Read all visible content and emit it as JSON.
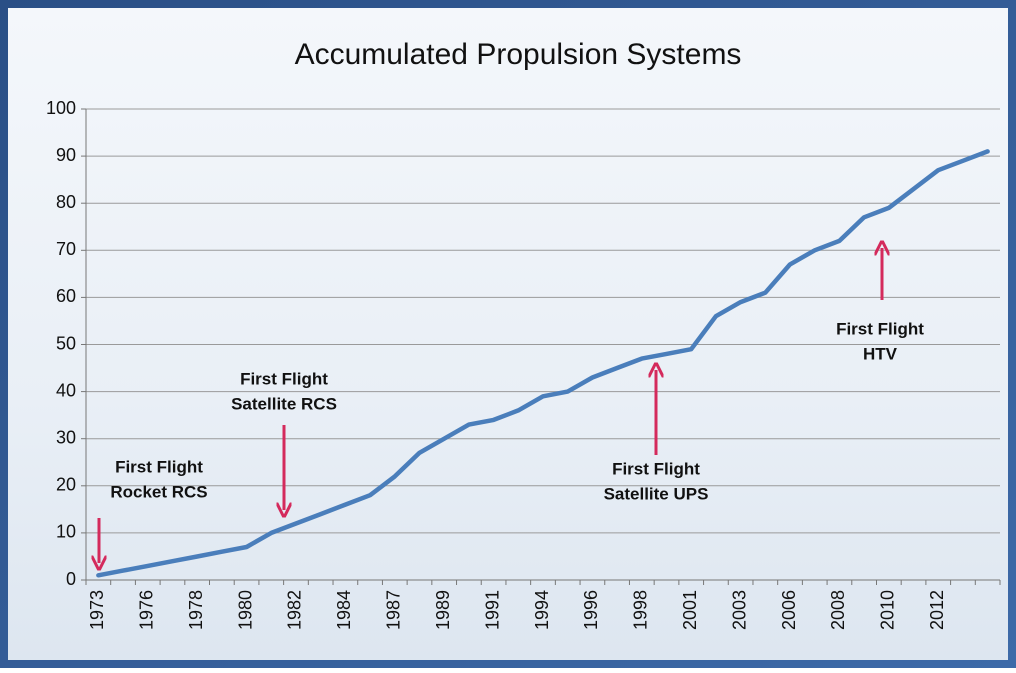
{
  "chart_data": {
    "type": "line",
    "title": "Accumulated Propulsion Systems",
    "categories": [
      "1973",
      null,
      "1976",
      null,
      "1978",
      null,
      "1980",
      null,
      "1982",
      null,
      "1984",
      null,
      "1987",
      null,
      "1989",
      null,
      "1991",
      null,
      "1994",
      null,
      "1996",
      null,
      "1998",
      null,
      "2001",
      null,
      "2003",
      null,
      "2006",
      null,
      "2008",
      null,
      "2010",
      null,
      "2012",
      null,
      null
    ],
    "series": [
      {
        "color": "#4a7ebb",
        "values": [
          1,
          2,
          3,
          4,
          5,
          6,
          7,
          10,
          12,
          14,
          16,
          18,
          22,
          27,
          30,
          33,
          34,
          36,
          39,
          40,
          43,
          45,
          47,
          48,
          49,
          56,
          59,
          61,
          67,
          70,
          72,
          77,
          79,
          83,
          87,
          89,
          91
        ]
      }
    ],
    "ylim": [
      0,
      100
    ],
    "yticks": [
      0,
      10,
      20,
      30,
      40,
      50,
      60,
      70,
      80,
      90,
      100
    ],
    "grid": true,
    "annotations": [
      {
        "lines": [
          "First Flight",
          "Rocket RCS"
        ]
      },
      {
        "lines": [
          "First Flight",
          "Satellite RCS"
        ]
      },
      {
        "lines": [
          "First Flight",
          "Satellite UPS"
        ]
      },
      {
        "lines": [
          "First Flight",
          "HTV"
        ]
      }
    ]
  }
}
